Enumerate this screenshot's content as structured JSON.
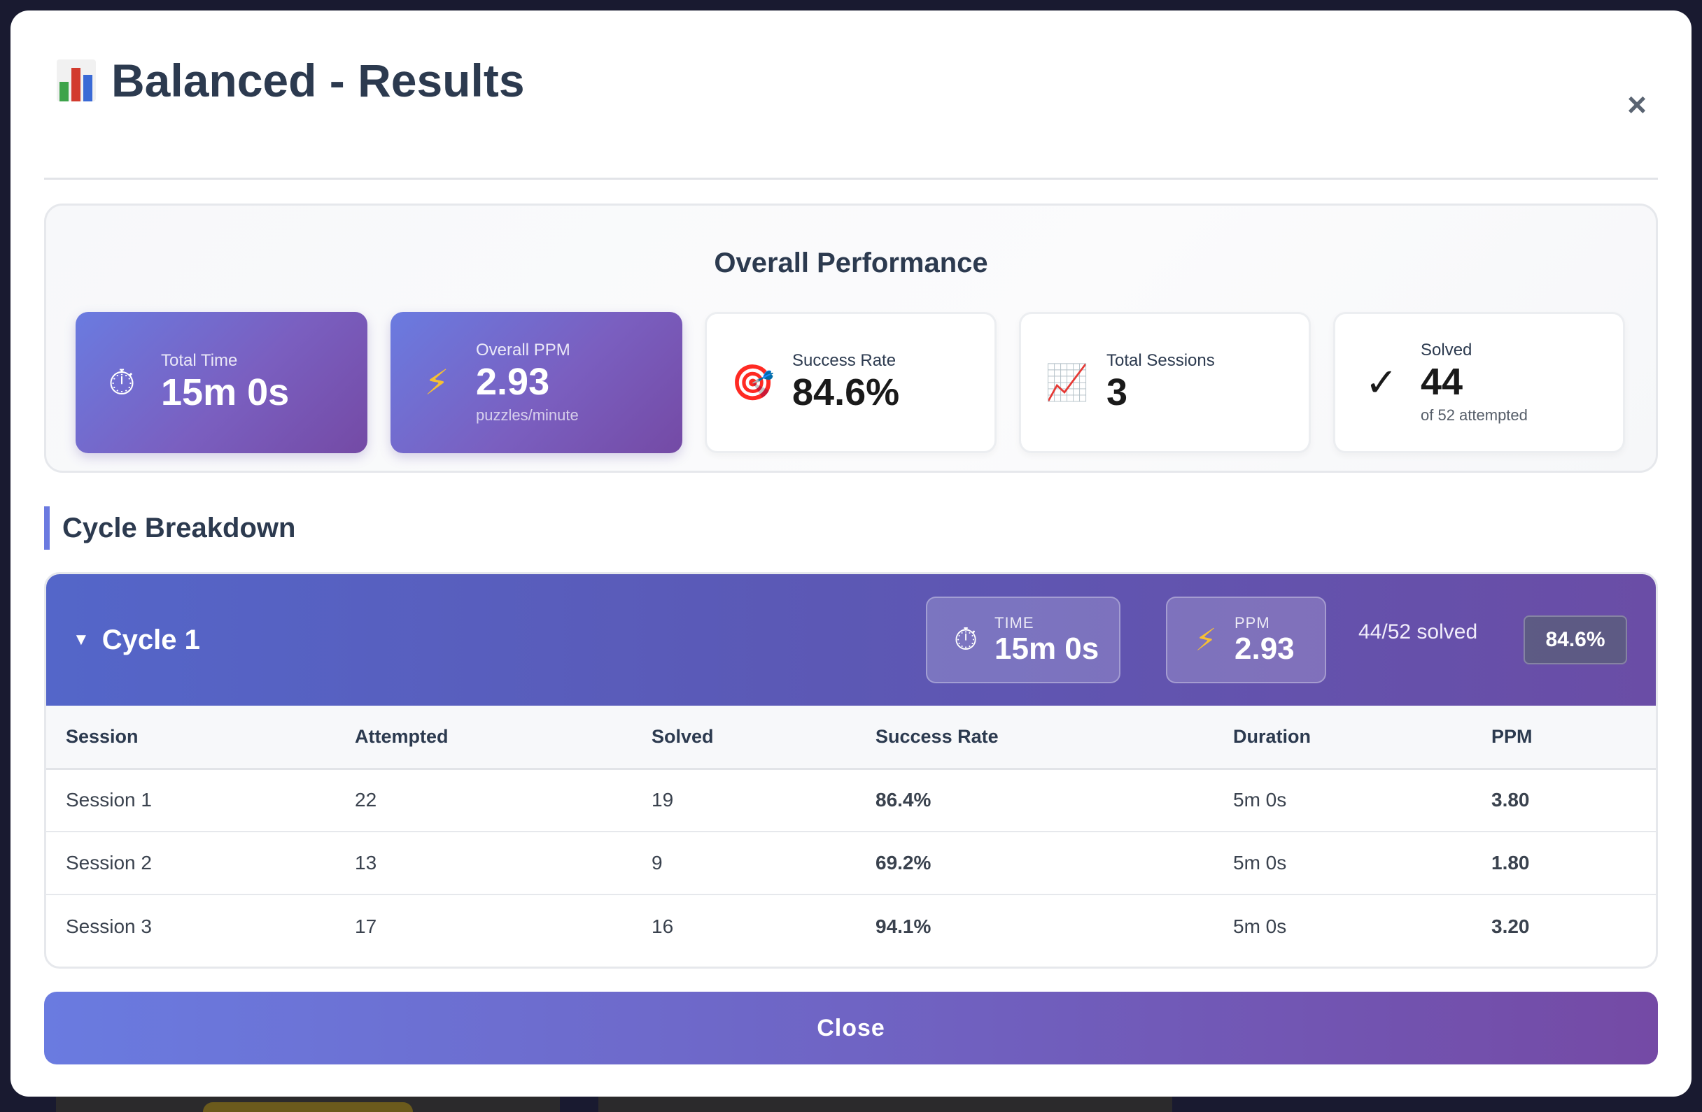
{
  "modal": {
    "title": "Balanced - Results",
    "close_glyph": "×",
    "title_icon": "bar-chart-icon"
  },
  "overall": {
    "title": "Overall Performance",
    "cards": [
      {
        "label": "Total Time",
        "value": "15m 0s",
        "sub": "",
        "icon": "stopwatch-icon",
        "glyph": "⏱",
        "style": "purple"
      },
      {
        "label": "Overall PPM",
        "value": "2.93",
        "sub": "puzzles/minute",
        "icon": "lightning-icon",
        "glyph": "⚡",
        "style": "purple"
      },
      {
        "label": "Success Rate",
        "value": "84.6%",
        "sub": "",
        "icon": "target-icon",
        "glyph": "🎯",
        "style": "white"
      },
      {
        "label": "Total Sessions",
        "value": "3",
        "sub": "",
        "icon": "trend-chart-icon",
        "glyph": "📈",
        "style": "white"
      },
      {
        "label": "Solved",
        "value": "44",
        "sub": "of 52 attempted",
        "icon": "checkmark-icon",
        "glyph": "✓",
        "style": "white"
      }
    ]
  },
  "breakdown": {
    "title": "Cycle Breakdown",
    "cycle": {
      "caret": "▼",
      "name": "Cycle 1",
      "time_label": "TIME",
      "time_value": "15m 0s",
      "ppm_label": "PPM",
      "ppm_value": "2.93",
      "solved_text": "44/52 solved",
      "percent": "84.6%"
    },
    "columns": [
      "Session",
      "Attempted",
      "Solved",
      "Success Rate",
      "Duration",
      "PPM"
    ],
    "rows": [
      [
        "Session 1",
        "22",
        "19",
        "86.4%",
        "5m 0s",
        "3.80"
      ],
      [
        "Session 2",
        "13",
        "9",
        "69.2%",
        "5m 0s",
        "1.80"
      ],
      [
        "Session 3",
        "17",
        "16",
        "94.1%",
        "5m 0s",
        "3.20"
      ]
    ]
  },
  "footer": {
    "close_label": "Close"
  },
  "colors": {
    "accent_start": "#6a7be0",
    "accent_end": "#744aa5",
    "heading": "#2c3a4f"
  }
}
